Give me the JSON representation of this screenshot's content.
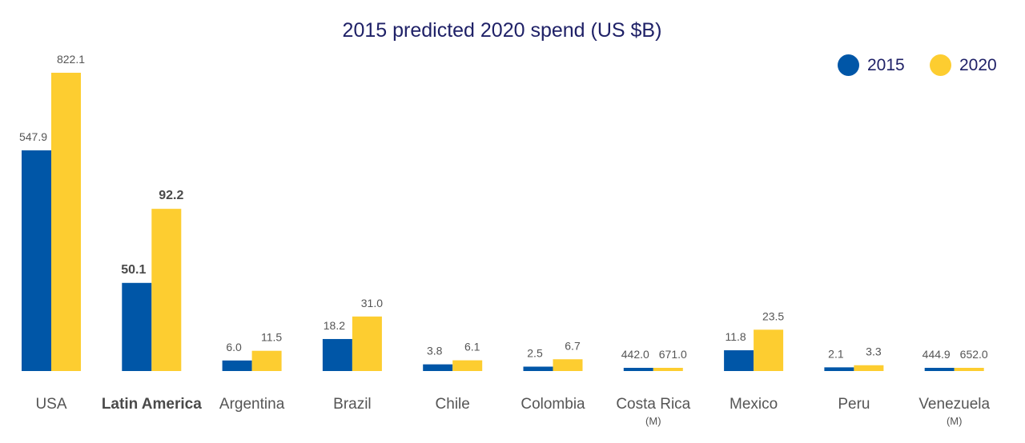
{
  "colors": {
    "s2015": "#0056a7",
    "s2020": "#fdcd30",
    "title": "#1f2167",
    "text": "#555555"
  },
  "chart_data": {
    "type": "bar",
    "title": "2015 predicted 2020 spend (US $B)",
    "xlabel": "",
    "ylabel": "",
    "grid": false,
    "legend_position": "top-right",
    "categories": [
      "USA",
      "Latin America",
      "Argentina",
      "Brazil",
      "Chile",
      "Colombia",
      "Costa Rica",
      "Mexico",
      "Peru",
      "Venezuela"
    ],
    "category_notes": [
      "",
      "",
      "",
      "",
      "",
      "",
      "(M)",
      "",
      "",
      "(M)"
    ],
    "emphasized_category": "Latin America",
    "series": [
      {
        "name": "2015",
        "values": [
          547.9,
          50.1,
          6.0,
          18.2,
          3.8,
          2.5,
          442.0,
          11.8,
          2.1,
          444.9
        ],
        "labels": [
          "547.9",
          "50.1",
          "6.0",
          "18.2",
          "3.8",
          "2.5",
          "442.0",
          "11.8",
          "2.1",
          "444.9"
        ]
      },
      {
        "name": "2020",
        "values": [
          822.1,
          92.2,
          11.5,
          31.0,
          6.1,
          6.7,
          671.0,
          23.5,
          3.3,
          652.0
        ],
        "labels": [
          "822.1",
          "92.2",
          "11.5",
          "31.0",
          "6.1",
          "6.7",
          "671.0",
          "23.5",
          "3.3",
          "652.0"
        ]
      }
    ],
    "units": [
      "B",
      "B",
      "B",
      "B",
      "B",
      "B",
      "M",
      "B",
      "B",
      "M"
    ]
  }
}
